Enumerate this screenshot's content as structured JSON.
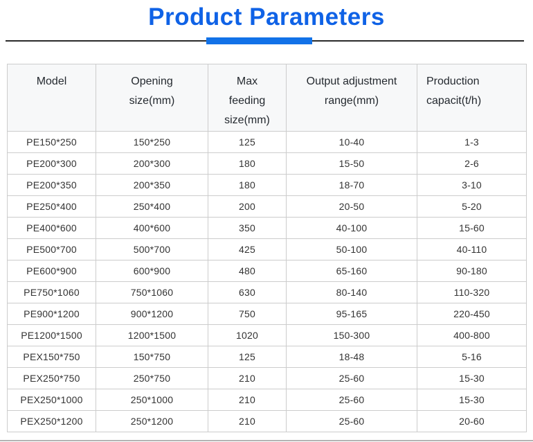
{
  "page": {
    "title": "Product Parameters"
  },
  "colors": {
    "title_blue": "#0f62e6",
    "accent_bar_blue": "#1272e8",
    "divider_dark": "#2a2a2a",
    "table_border": "#cccccc",
    "header_bg": "#f7f8f9",
    "header_text": "#24292f",
    "cell_text": "#333333",
    "bottom_line_gray": "#b3b3b3"
  },
  "table": {
    "headers": [
      {
        "label": "Model",
        "lines": [
          "Model"
        ],
        "align": "center"
      },
      {
        "label": "Opening size(mm)",
        "lines": [
          "Opening",
          "size(mm)"
        ],
        "align": "center"
      },
      {
        "label": "Max feeding size(mm)",
        "lines": [
          "Max",
          "feeding",
          "size(mm)"
        ],
        "align": "center"
      },
      {
        "label": "Output adjustment range(mm)",
        "lines": [
          "Output adjustment",
          "range(mm)"
        ],
        "align": "center"
      },
      {
        "label": "Production capacit(t/h)",
        "lines": [
          "Production",
          "capacit(t/h)"
        ],
        "align": "left"
      }
    ],
    "rows": [
      [
        "PE150*250",
        "150*250",
        "125",
        "10-40",
        "1-3"
      ],
      [
        "PE200*300",
        "200*300",
        "180",
        "15-50",
        "2-6"
      ],
      [
        "PE200*350",
        "200*350",
        "180",
        "18-70",
        "3-10"
      ],
      [
        "PE250*400",
        "250*400",
        "200",
        "20-50",
        "5-20"
      ],
      [
        "PE400*600",
        "400*600",
        "350",
        "40-100",
        "15-60"
      ],
      [
        "PE500*700",
        "500*700",
        "425",
        "50-100",
        "40-110"
      ],
      [
        "PE600*900",
        "600*900",
        "480",
        "65-160",
        "90-180"
      ],
      [
        "PE750*1060",
        "750*1060",
        "630",
        "80-140",
        "110-320"
      ],
      [
        "PE900*1200",
        "900*1200",
        "750",
        "95-165",
        "220-450"
      ],
      [
        "PE1200*1500",
        "1200*1500",
        "1020",
        "150-300",
        "400-800"
      ],
      [
        "PEX150*750",
        "150*750",
        "125",
        "18-48",
        "5-16"
      ],
      [
        "PEX250*750",
        "250*750",
        "210",
        "25-60",
        "15-30"
      ],
      [
        "PEX250*1000",
        "250*1000",
        "210",
        "25-60",
        "15-30"
      ],
      [
        "PEX250*1200",
        "250*1200",
        "210",
        "25-60",
        "20-60"
      ]
    ]
  }
}
